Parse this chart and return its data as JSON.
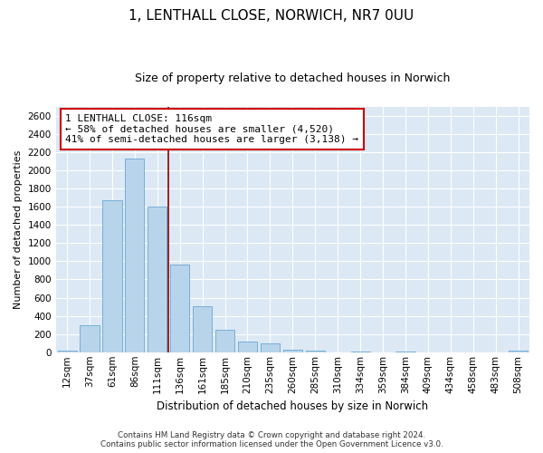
{
  "title1": "1, LENTHALL CLOSE, NORWICH, NR7 0UU",
  "title2": "Size of property relative to detached houses in Norwich",
  "xlabel": "Distribution of detached houses by size in Norwich",
  "ylabel": "Number of detached properties",
  "bar_labels": [
    "12sqm",
    "37sqm",
    "61sqm",
    "86sqm",
    "111sqm",
    "136sqm",
    "161sqm",
    "185sqm",
    "210sqm",
    "235sqm",
    "260sqm",
    "285sqm",
    "310sqm",
    "334sqm",
    "359sqm",
    "384sqm",
    "409sqm",
    "434sqm",
    "458sqm",
    "483sqm",
    "508sqm"
  ],
  "bar_values": [
    20,
    295,
    1670,
    2130,
    1600,
    960,
    505,
    250,
    120,
    95,
    30,
    20,
    0,
    5,
    0,
    5,
    0,
    0,
    0,
    0,
    20
  ],
  "bar_color": "#b8d4ea",
  "bar_edge_color": "#6aa8d4",
  "vline_color": "#8b0000",
  "annotation_title": "1 LENTHALL CLOSE: 116sqm",
  "annotation_line1": "← 58% of detached houses are smaller (4,520)",
  "annotation_line2": "41% of semi-detached houses are larger (3,138) →",
  "annotation_box_facecolor": "white",
  "annotation_box_edgecolor": "#cc0000",
  "ylim": [
    0,
    2700
  ],
  "yticks": [
    0,
    200,
    400,
    600,
    800,
    1000,
    1200,
    1400,
    1600,
    1800,
    2000,
    2200,
    2400,
    2600
  ],
  "footer1": "Contains HM Land Registry data © Crown copyright and database right 2024.",
  "footer2": "Contains public sector information licensed under the Open Government Licence v3.0.",
  "bg_color": "#ffffff",
  "plot_bg_color": "#dce8f4",
  "grid_color": "#ffffff",
  "title1_fontsize": 11,
  "title2_fontsize": 9,
  "tick_fontsize": 7.5,
  "ylabel_fontsize": 8,
  "xlabel_fontsize": 8.5
}
